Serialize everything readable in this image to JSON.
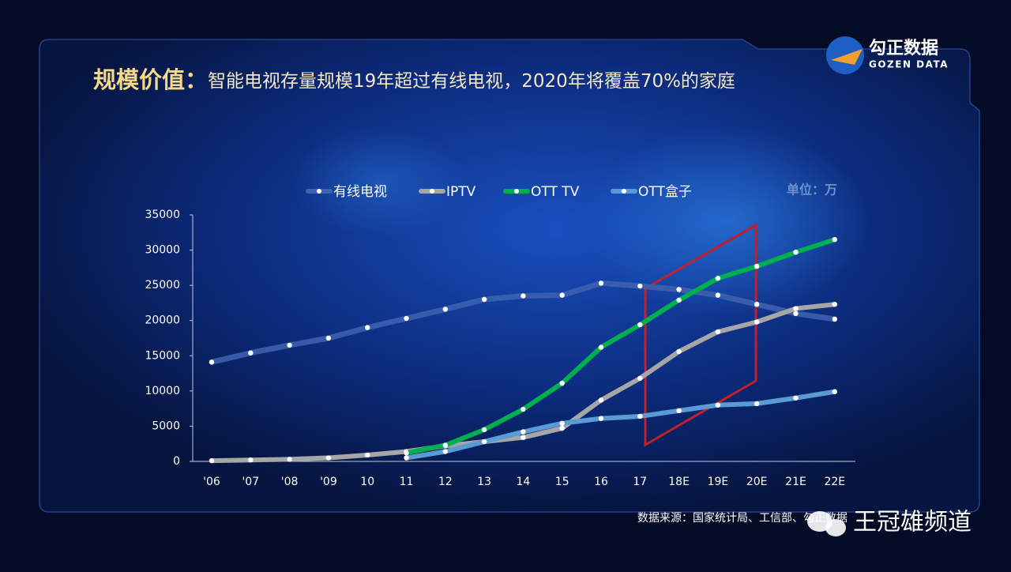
{
  "chart_data": {
    "type": "line",
    "title": "规模价值：",
    "subtitle": "智能电视存量规模19年超过有线电视，2020年将覆盖70%的家庭",
    "unit_label": "单位：万",
    "categories": [
      "'06",
      "'07",
      "'08",
      "'09",
      "10",
      "11",
      "12",
      "13",
      "14",
      "15",
      "16",
      "17",
      "18E",
      "19E",
      "20E",
      "21E",
      "22E"
    ],
    "series": [
      {
        "name": "有线电视",
        "color": "#3f63b0",
        "values": [
          14100,
          15400,
          16500,
          17500,
          19000,
          20300,
          21600,
          23000,
          23500,
          23600,
          25300,
          24900,
          24400,
          23600,
          22300,
          21000,
          20200
        ]
      },
      {
        "name": "IPTV",
        "color": "#a6a6a6",
        "values": [
          100,
          200,
          300,
          500,
          900,
          1400,
          2200,
          2800,
          3400,
          4700,
          8700,
          11800,
          15600,
          18400,
          19800,
          21700,
          22300
        ]
      },
      {
        "name": "OTT TV",
        "color": "#00b050",
        "values": [
          null,
          null,
          null,
          null,
          null,
          1200,
          2300,
          4500,
          7400,
          11100,
          16200,
          19400,
          22900,
          26000,
          27700,
          29700,
          31500
        ]
      },
      {
        "name": "OTT盒子",
        "color": "#5b9bd5",
        "values": [
          null,
          null,
          null,
          null,
          null,
          500,
          1400,
          2800,
          4200,
          5400,
          6100,
          6400,
          7200,
          8000,
          8200,
          9000,
          9900
        ]
      }
    ],
    "ylim": [
      0,
      35000
    ],
    "yticks": [
      0,
      5000,
      10000,
      15000,
      20000,
      25000,
      30000,
      35000
    ]
  },
  "logo": {
    "name": "勾正数据",
    "sub": "GOZEN DATA"
  },
  "source": "数据来源：国家统计局、工信部、勾正数据",
  "watermark": "王冠雄频道"
}
